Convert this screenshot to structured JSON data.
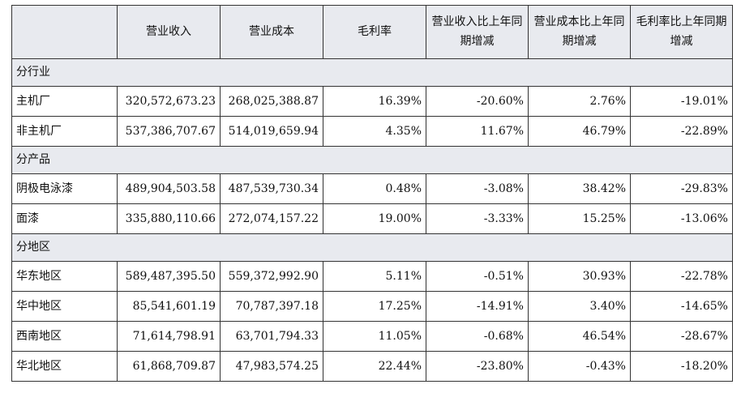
{
  "table": {
    "header": [
      "",
      "营业收入",
      "营业成本",
      "毛利率",
      "营业收入比上年同期增减",
      "营业成本比上年同期增减",
      "毛利率比上年同期增减"
    ],
    "sections": [
      {
        "title": "分行业",
        "rows": [
          [
            "主机厂",
            "320,572,673.23",
            "268,025,388.87",
            "16.39%",
            "-20.60%",
            "2.76%",
            "-19.01%"
          ],
          [
            "非主机厂",
            "537,386,707.67",
            "514,019,659.94",
            "4.35%",
            "11.67%",
            "46.79%",
            "-22.89%"
          ]
        ]
      },
      {
        "title": "分产品",
        "rows": [
          [
            "阴极电泳漆",
            "489,904,503.58",
            "487,539,730.34",
            "0.48%",
            "-3.08%",
            "38.42%",
            "-29.83%"
          ],
          [
            "面漆",
            "335,880,110.66",
            "272,074,157.22",
            "19.00%",
            "-3.33%",
            "15.25%",
            "-13.06%"
          ]
        ]
      },
      {
        "title": "分地区",
        "rows": [
          [
            "华东地区",
            "589,487,395.50",
            "559,372,992.90",
            "5.11%",
            "-0.51%",
            "30.93%",
            "-22.78%"
          ],
          [
            "华中地区",
            "85,541,601.19",
            "70,787,397.18",
            "17.25%",
            "-14.91%",
            "3.40%",
            "-14.65%"
          ],
          [
            "西南地区",
            "71,614,798.91",
            "63,701,794.33",
            "11.05%",
            "-0.68%",
            "46.54%",
            "-28.67%"
          ],
          [
            "华北地区",
            "61,868,709.87",
            "47,983,574.25",
            "22.44%",
            "-23.80%",
            "-0.43%",
            "-18.20%"
          ]
        ]
      }
    ]
  }
}
